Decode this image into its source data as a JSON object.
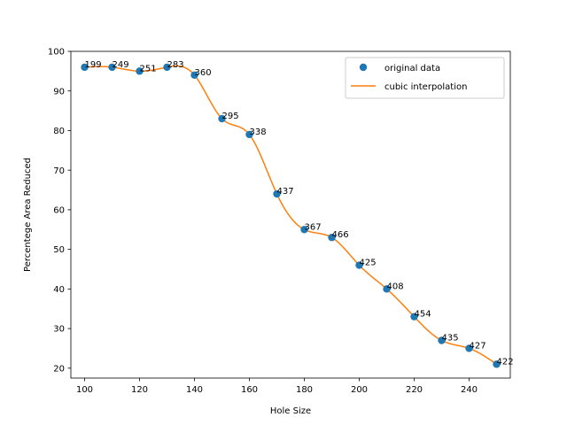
{
  "chart_data": {
    "type": "scatter",
    "title": "",
    "xlabel": "Hole Size",
    "ylabel": "Percentege Area Reduced",
    "xlim": [
      95,
      255
    ],
    "ylim": [
      17.5,
      100
    ],
    "xticks": [
      100,
      120,
      140,
      160,
      180,
      200,
      220,
      240
    ],
    "yticks": [
      20,
      30,
      40,
      50,
      60,
      70,
      80,
      90,
      100
    ],
    "grid": false,
    "legend_position": "top-right",
    "series": [
      {
        "name": "original data",
        "kind": "scatter",
        "color": "#1f77b4",
        "x": [
          100,
          110,
          120,
          130,
          140,
          150,
          160,
          170,
          180,
          190,
          200,
          210,
          220,
          230,
          240,
          250
        ],
        "y": [
          96,
          96,
          95,
          96,
          94,
          83,
          79,
          64,
          55,
          53,
          46,
          40,
          33,
          27,
          25,
          21
        ],
        "labels": [
          "199",
          "249",
          "251",
          "283",
          "360",
          "295",
          "338",
          "437",
          "367",
          "466",
          "425",
          "408",
          "454",
          "435",
          "427",
          "422"
        ]
      },
      {
        "name": "cubic interpolation",
        "kind": "line",
        "color": "#ff7f0e"
      }
    ]
  }
}
